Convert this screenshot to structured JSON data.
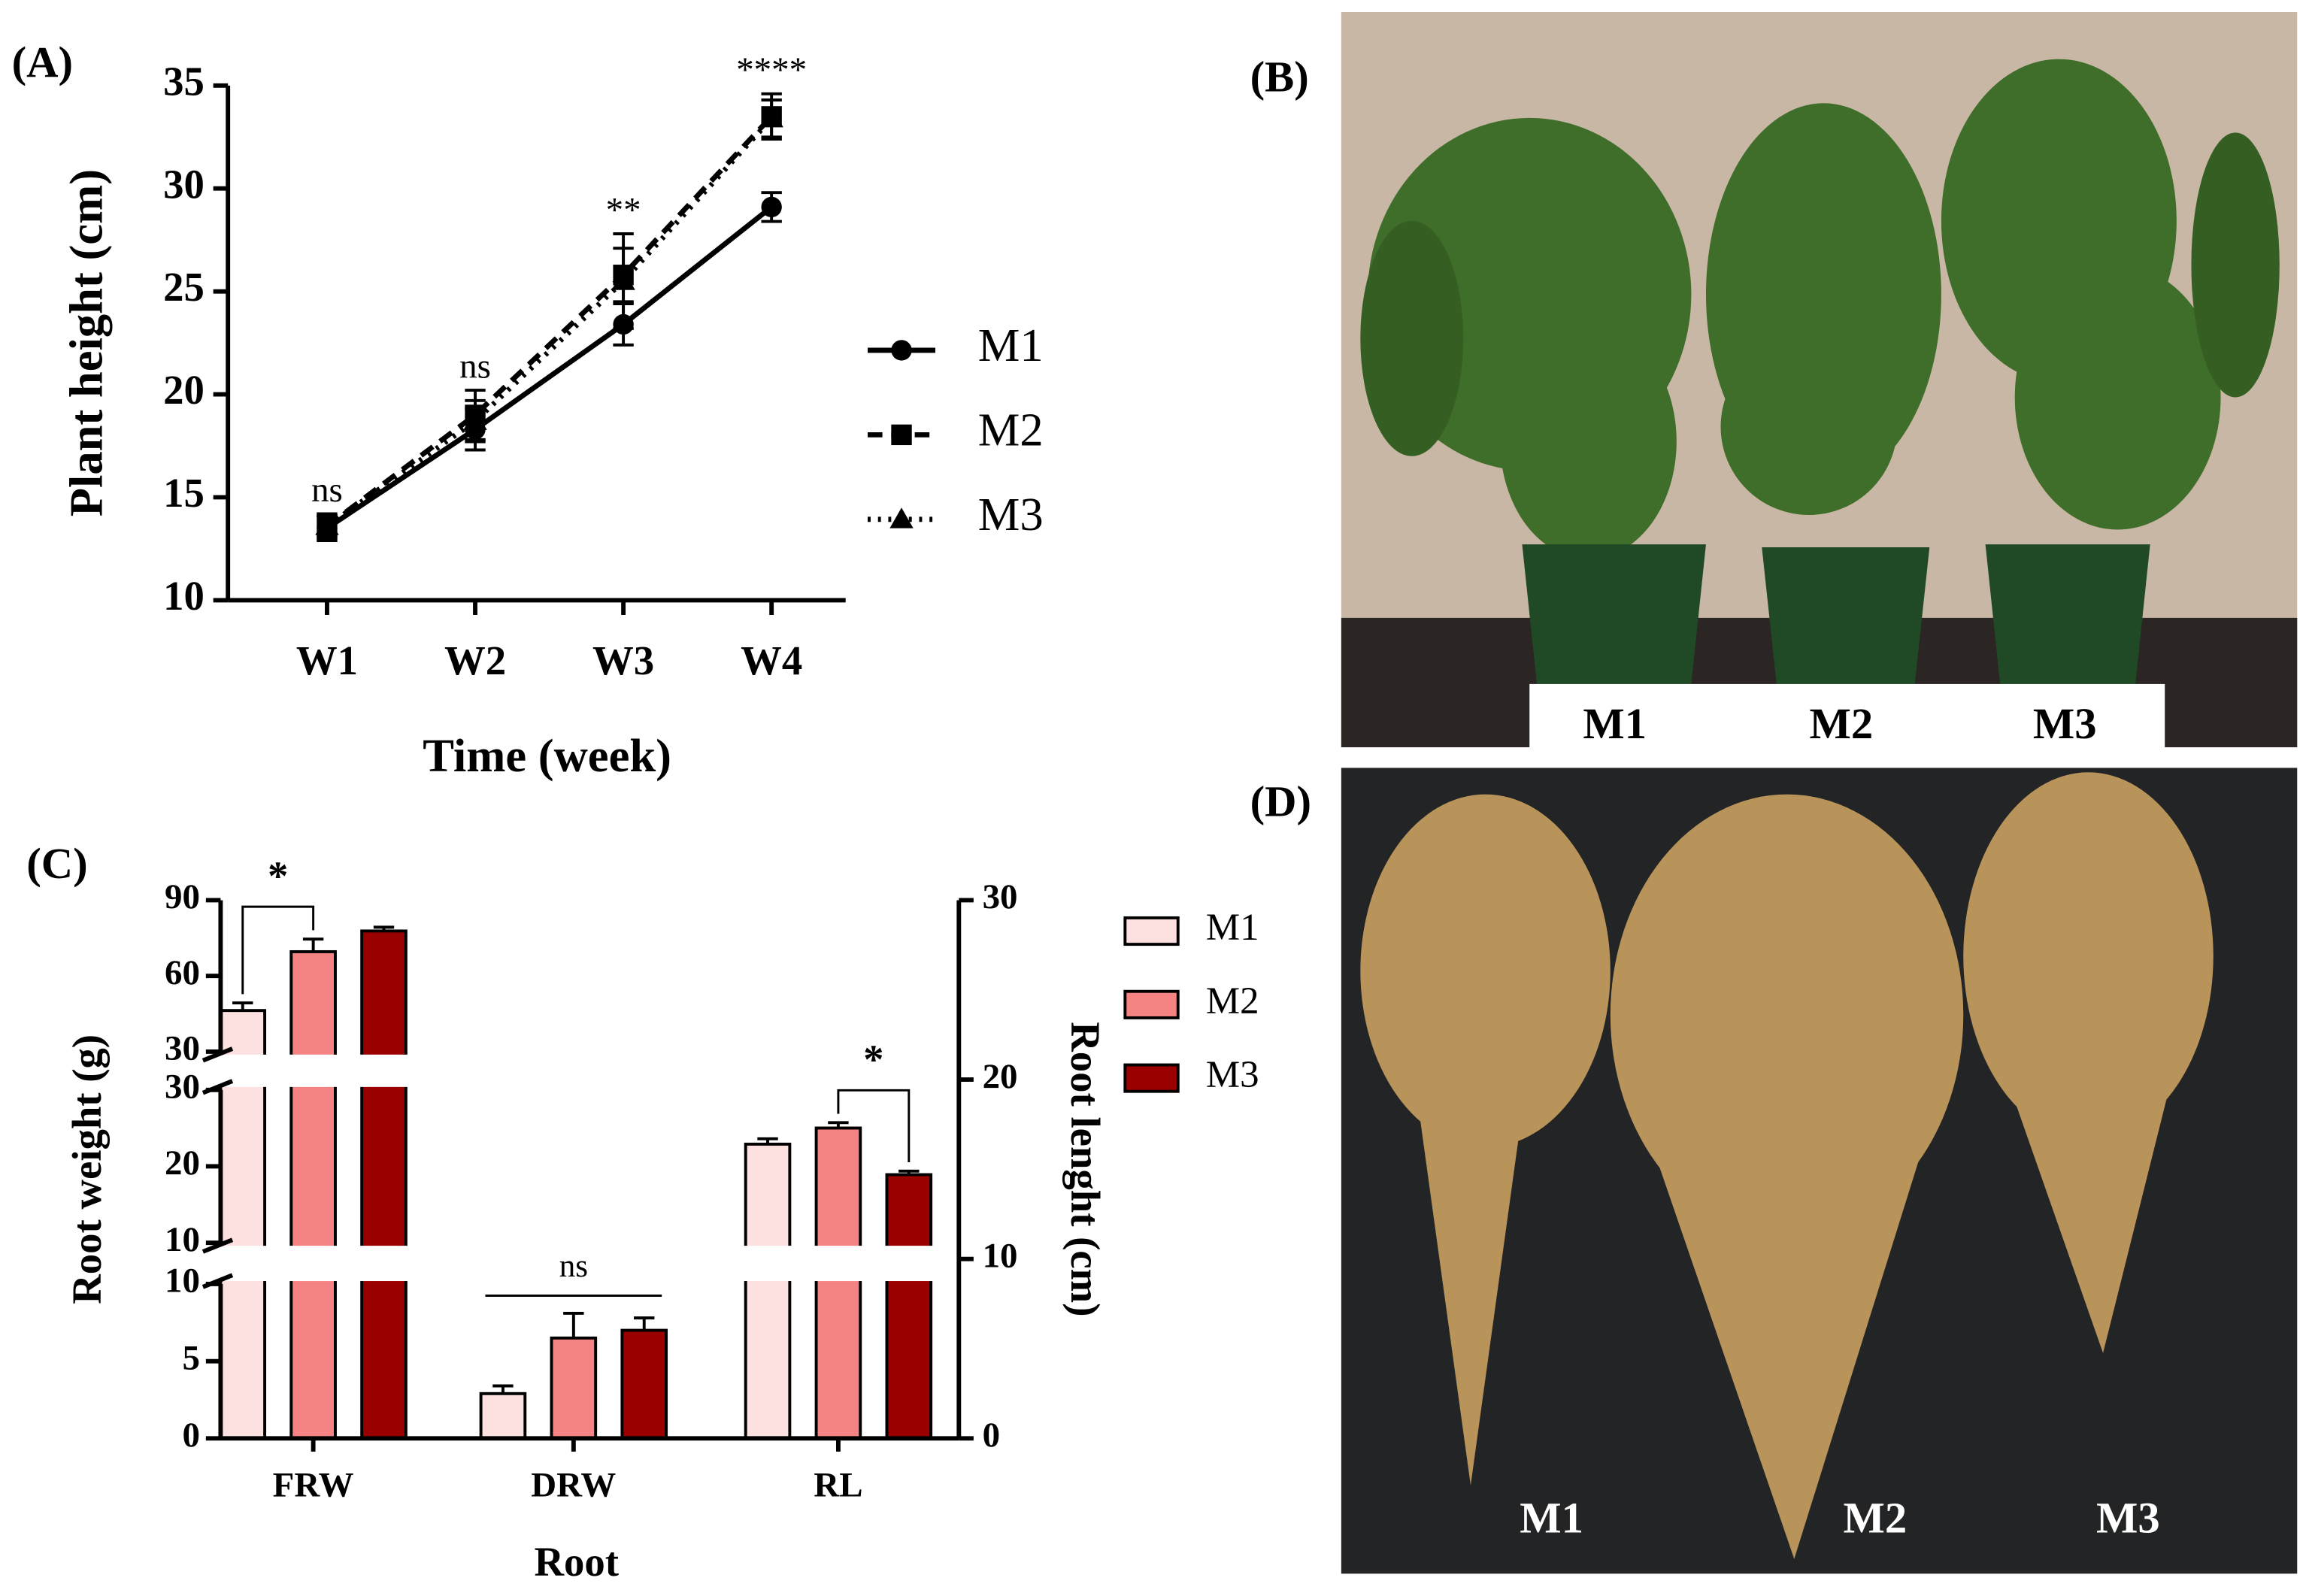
{
  "chart_data": [
    {
      "type": "line",
      "panel_label": "(A)",
      "xlabel": "Time (week)",
      "ylabel": "Plant height (cm)",
      "categories": [
        "W1",
        "W2",
        "W3",
        "W4"
      ],
      "ylim": [
        10,
        35
      ],
      "yticks": [
        10,
        15,
        20,
        25,
        30,
        35
      ],
      "annotations": [
        "ns",
        "ns",
        "**",
        "****"
      ],
      "series": [
        {
          "name": "M1",
          "color": "#000000",
          "dash": "solid",
          "marker": "circle",
          "values": [
            13.5,
            18.3,
            23.4,
            29.1
          ],
          "errors": [
            0.6,
            1.0,
            1.0,
            0.7
          ]
        },
        {
          "name": "M2",
          "color": "#000000",
          "dash": "dashed",
          "marker": "square",
          "values": [
            13.6,
            19.0,
            25.8,
            33.5
          ],
          "errors": [
            0.6,
            1.2,
            1.3,
            1.1
          ]
        },
        {
          "name": "M3",
          "color": "#000000",
          "dash": "dotted",
          "marker": "triangle",
          "values": [
            13.6,
            18.7,
            25.5,
            33.4
          ],
          "errors": [
            0.5,
            1.0,
            2.3,
            0.9
          ]
        }
      ]
    },
    {
      "type": "bar",
      "panel_label": "(C)",
      "xlabel": "Root",
      "ylabel": "Root weight (g)",
      "y2label": "Root lenght (cm)",
      "categories": [
        "FRW",
        "DRW",
        "RL"
      ],
      "category_axes": [
        "y",
        "y",
        "y2"
      ],
      "y_segments": [
        {
          "ylim": [
            0,
            10
          ],
          "yticks": [
            0,
            5,
            10
          ]
        },
        {
          "ylim": [
            10,
            30
          ],
          "yticks": [
            10,
            20,
            30
          ]
        },
        {
          "ylim": [
            30,
            90
          ],
          "yticks": [
            30,
            60,
            90
          ]
        }
      ],
      "y2lim": [
        0,
        30
      ],
      "y2ticks": [
        0,
        10,
        20,
        30
      ],
      "annotations": [
        "*",
        "ns",
        "*"
      ],
      "series": [
        {
          "name": "M1",
          "color": "#fde0e0",
          "values": [
            46.3,
            2.9,
            16.4
          ],
          "errors": [
            3.0,
            0.5,
            0.3
          ]
        },
        {
          "name": "M2",
          "color": "#f58383",
          "values": [
            69.6,
            6.5,
            17.3
          ],
          "errors": [
            5.0,
            1.6,
            0.3
          ]
        },
        {
          "name": "M3",
          "color": "#9b0000",
          "values": [
            77.8,
            7.0,
            14.7
          ],
          "errors": [
            1.5,
            0.8,
            0.2
          ]
        }
      ]
    }
  ],
  "photos": [
    {
      "panel_label": "(B)",
      "labels": [
        "M1",
        "M2",
        "M3"
      ]
    },
    {
      "panel_label": "(D)",
      "labels": [
        "M1",
        "M2",
        "M3"
      ]
    }
  ]
}
